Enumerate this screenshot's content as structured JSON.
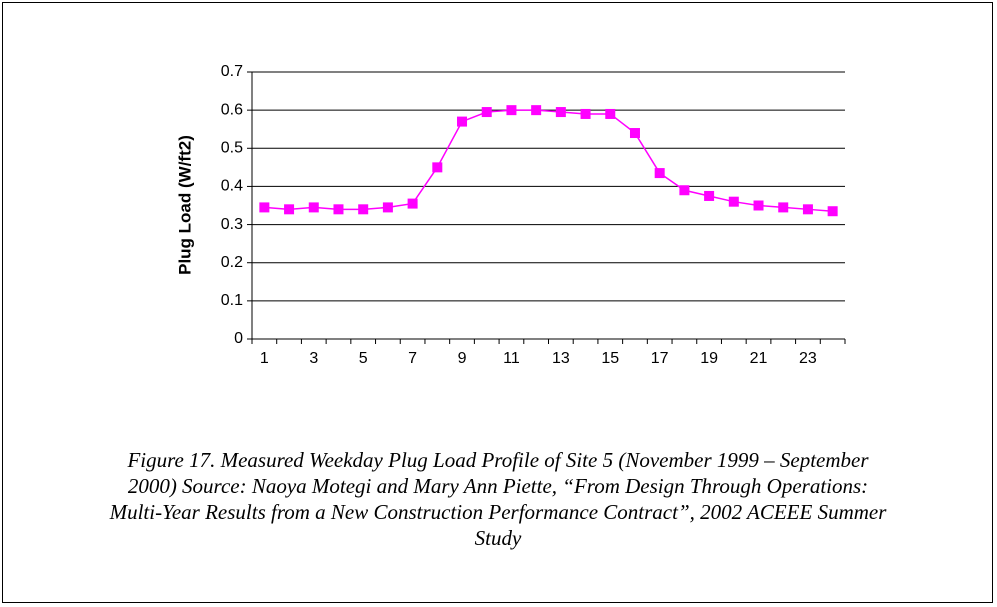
{
  "chart_data": {
    "type": "line",
    "y_label": "Plug Load (W/ft2)",
    "categories": [
      1,
      null,
      3,
      null,
      5,
      null,
      7,
      null,
      9,
      null,
      11,
      null,
      13,
      null,
      15,
      null,
      17,
      null,
      19,
      null,
      21,
      null,
      23,
      null
    ],
    "series": [
      {
        "name": null,
        "color": "#ff00ff",
        "values": [
          0.345,
          0.34,
          0.345,
          0.34,
          0.34,
          0.345,
          0.355,
          0.45,
          0.57,
          0.595,
          0.6,
          0.6,
          0.595,
          0.59,
          0.59,
          0.54,
          0.435,
          0.39,
          0.375,
          0.36,
          0.35,
          0.345,
          0.34,
          0.335
        ]
      }
    ],
    "ylim": [
      0,
      0.7
    ],
    "yticks": [
      0,
      0.1,
      0.2,
      0.3,
      0.4,
      0.5,
      0.6,
      0.7
    ],
    "grid": true,
    "caption": "Figure 17. Measured Weekday Plug Load Profile of Site 5 (November 1999 – September 2000) Source: Naoya Motegi and Mary Ann Piette, “From Design Through Operations: Multi-Year Results from a New Construction Performance Contract”, 2002 ACEEE Summer Study"
  }
}
